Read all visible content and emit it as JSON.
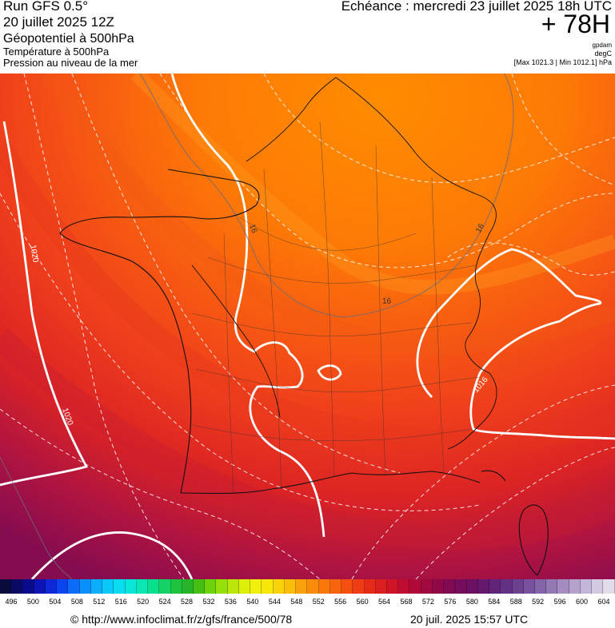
{
  "header": {
    "run_title": "Run GFS 0.5°",
    "run_date": "20 juillet 2025 12Z",
    "layers": [
      "Géopotentiel à 500hPa",
      "Température à 500hPa",
      "Pression au niveau de la mer"
    ],
    "echeance": "Echéance : mercredi 23 juillet 2025 18h UTC",
    "horizon": "+ 78H",
    "units": [
      "gpdam",
      "degC"
    ],
    "minmax": "[Max 1021.3 | Min 1012.1] hPa"
  },
  "map": {
    "region": "France",
    "contour_labels": [
      "1020",
      "1020",
      "1016",
      "16",
      "16",
      "16"
    ],
    "fill_colors": [
      "#ff8a00",
      "#fd7a06",
      "#fa6a0c",
      "#f75a12",
      "#f34a18",
      "#ee3c1e",
      "#e02c22",
      "#cc1c30",
      "#b0143c",
      "#8e0c4c"
    ]
  },
  "legend": {
    "ticks": [
      "496",
      "500",
      "504",
      "508",
      "512",
      "516",
      "520",
      "524",
      "528",
      "532",
      "536",
      "540",
      "544",
      "548",
      "552",
      "556",
      "560",
      "564",
      "568",
      "572",
      "576",
      "580",
      "584",
      "588",
      "592",
      "596",
      "600",
      "604"
    ],
    "colors": [
      "#0a0a3c",
      "#0a0a64",
      "#0a0a8c",
      "#0c14b4",
      "#0c28d8",
      "#0a46f0",
      "#0a6cf8",
      "#0a90fa",
      "#0aaefa",
      "#0ac8f8",
      "#0adcf0",
      "#0ae6d8",
      "#0ae6b4",
      "#0ae08c",
      "#14d264",
      "#1ec23c",
      "#28b428",
      "#46be14",
      "#6ed20a",
      "#96e00a",
      "#bce60a",
      "#dcf00a",
      "#f0f00a",
      "#f8e60a",
      "#fad20a",
      "#fabe0a",
      "#faa00a",
      "#fa8c0a",
      "#fa780a",
      "#f8640c",
      "#f5500f",
      "#f03c14",
      "#e62a18",
      "#dc1e1e",
      "#d01428",
      "#c00c30",
      "#b00838",
      "#a00840",
      "#900848",
      "#820a52",
      "#760c5c",
      "#6c1064",
      "#64186e",
      "#602478",
      "#643284",
      "#6c4290",
      "#78529c",
      "#8464a8",
      "#9478b4",
      "#a48cc0",
      "#b4a2cc",
      "#c4b6d8",
      "#d4cae2",
      "#e2dcea"
    ]
  },
  "footer": {
    "credit": "© http://www.infoclimat.fr/z/gfs/france/500/78",
    "generated": "20 juil. 2025 15:57 UTC"
  }
}
